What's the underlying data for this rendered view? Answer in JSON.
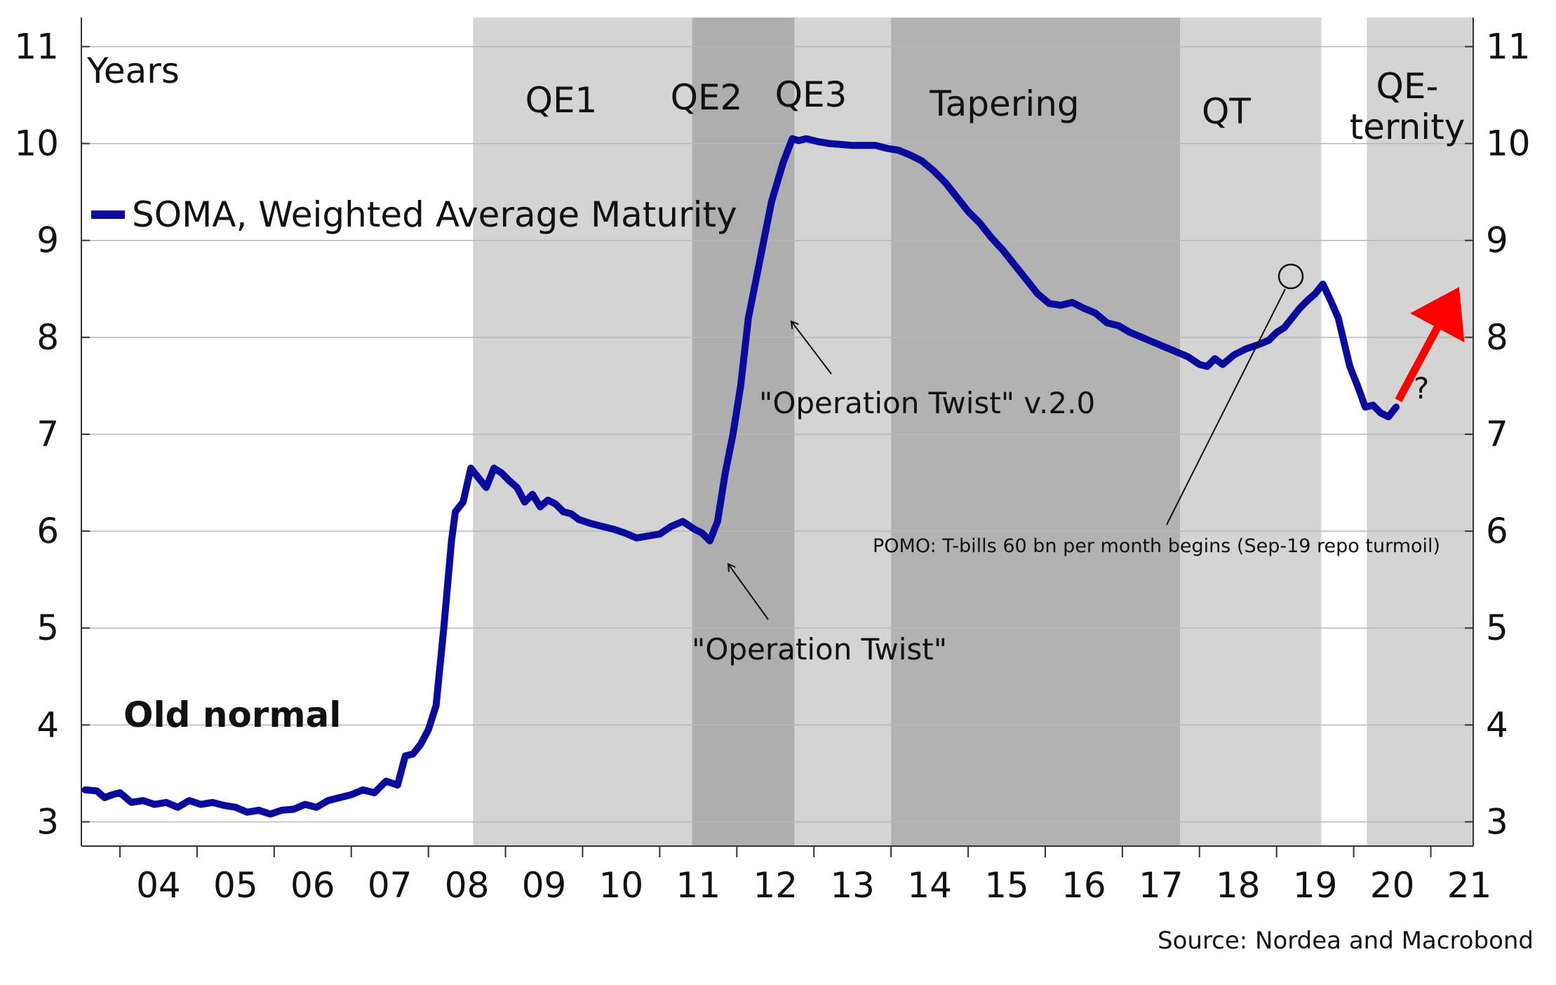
{
  "chart_data": {
    "type": "line",
    "ylabel": "Years",
    "ylim": [
      2.75,
      11.3
    ],
    "xlim": [
      2003.5,
      2021.55
    ],
    "yticks": [
      "3",
      "4",
      "5",
      "6",
      "7",
      "8",
      "9",
      "10",
      "11"
    ],
    "ytick_values": [
      3,
      4,
      5,
      6,
      7,
      8,
      9,
      10,
      11
    ],
    "xticks": [
      "04",
      "05",
      "06",
      "07",
      "08",
      "09",
      "10",
      "11",
      "12",
      "13",
      "14",
      "15",
      "16",
      "17",
      "18",
      "19",
      "20",
      "21"
    ],
    "xtick_values": [
      2004,
      2005,
      2006,
      2007,
      2008,
      2009,
      2010,
      2011,
      2012,
      2013,
      2014,
      2015,
      2016,
      2017,
      2018,
      2019,
      2020,
      2021
    ],
    "legend": {
      "label": "SOMA, Weighted Average Maturity",
      "color": "#0a0a9c",
      "position": "top-left"
    },
    "series": [
      {
        "name": "SOMA, Weighted Average Maturity",
        "color": "#0a0a9c",
        "x": [
          2003.55,
          2003.7,
          2003.8,
          2003.9,
          2004.0,
          2004.15,
          2004.3,
          2004.45,
          2004.6,
          2004.75,
          2004.9,
          2005.05,
          2005.2,
          2005.35,
          2005.5,
          2005.65,
          2005.8,
          2005.95,
          2006.1,
          2006.25,
          2006.4,
          2006.55,
          2006.7,
          2006.85,
          2007.0,
          2007.15,
          2007.3,
          2007.45,
          2007.6,
          2007.7,
          2007.8,
          2007.9,
          2008.0,
          2008.1,
          2008.2,
          2008.3,
          2008.35,
          2008.45,
          2008.55,
          2008.65,
          2008.75,
          2008.85,
          2008.95,
          2009.05,
          2009.15,
          2009.25,
          2009.35,
          2009.45,
          2009.55,
          2009.65,
          2009.75,
          2009.85,
          2009.95,
          2010.1,
          2010.25,
          2010.4,
          2010.55,
          2010.7,
          2010.85,
          2011.0,
          2011.15,
          2011.3,
          2011.45,
          2011.55,
          2011.65,
          2011.75,
          2011.85,
          2011.95,
          2012.05,
          2012.15,
          2012.3,
          2012.45,
          2012.6,
          2012.72,
          2012.8,
          2012.9,
          2013.05,
          2013.2,
          2013.35,
          2013.5,
          2013.65,
          2013.8,
          2013.95,
          2014.1,
          2014.25,
          2014.4,
          2014.55,
          2014.7,
          2014.85,
          2015.0,
          2015.15,
          2015.3,
          2015.45,
          2015.6,
          2015.75,
          2015.9,
          2016.05,
          2016.2,
          2016.35,
          2016.5,
          2016.65,
          2016.8,
          2016.95,
          2017.1,
          2017.25,
          2017.4,
          2017.55,
          2017.7,
          2017.85,
          2018.0,
          2018.1,
          2018.2,
          2018.3,
          2018.45,
          2018.6,
          2018.75,
          2018.9,
          2019.0,
          2019.1,
          2019.2,
          2019.3,
          2019.4,
          2019.5,
          2019.6,
          2019.7,
          2019.8,
          2019.95,
          2020.05,
          2020.15,
          2020.25,
          2020.35,
          2020.45,
          2020.55
        ],
        "values": [
          3.33,
          3.32,
          3.25,
          3.28,
          3.3,
          3.2,
          3.22,
          3.18,
          3.2,
          3.15,
          3.22,
          3.18,
          3.2,
          3.17,
          3.15,
          3.1,
          3.12,
          3.08,
          3.12,
          3.13,
          3.18,
          3.15,
          3.22,
          3.25,
          3.28,
          3.33,
          3.3,
          3.42,
          3.38,
          3.68,
          3.7,
          3.8,
          3.95,
          4.2,
          5.0,
          5.9,
          6.2,
          6.3,
          6.65,
          6.55,
          6.45,
          6.65,
          6.6,
          6.52,
          6.45,
          6.3,
          6.38,
          6.25,
          6.32,
          6.28,
          6.2,
          6.18,
          6.12,
          6.08,
          6.05,
          6.02,
          5.98,
          5.93,
          5.95,
          5.97,
          6.05,
          6.1,
          6.02,
          5.98,
          5.9,
          6.1,
          6.6,
          7.0,
          7.5,
          8.2,
          8.8,
          9.4,
          9.8,
          10.05,
          10.03,
          10.05,
          10.02,
          10.0,
          9.99,
          9.98,
          9.98,
          9.98,
          9.95,
          9.93,
          9.88,
          9.82,
          9.72,
          9.6,
          9.45,
          9.3,
          9.18,
          9.03,
          8.9,
          8.75,
          8.6,
          8.45,
          8.35,
          8.33,
          8.36,
          8.3,
          8.25,
          8.15,
          8.12,
          8.05,
          8.0,
          7.95,
          7.9,
          7.85,
          7.8,
          7.72,
          7.7,
          7.78,
          7.72,
          7.82,
          7.88,
          7.92,
          7.97,
          8.05,
          8.1,
          8.2,
          8.3,
          8.38,
          8.45,
          8.55,
          8.38,
          8.2,
          7.7,
          7.5,
          7.28,
          7.3,
          7.22,
          7.18,
          7.28
        ]
      }
    ],
    "regions": [
      {
        "label": "QE1",
        "x0": 2008.58,
        "x1": 2011.42,
        "color": "#d4d4d4"
      },
      {
        "label": "QE2",
        "x0": 2011.42,
        "x1": 2012.75,
        "color": "#aeaeae"
      },
      {
        "label": "QE3",
        "x0": 2012.75,
        "x1": 2014.0,
        "color": "#d4d4d4"
      },
      {
        "label": "Tapering",
        "x0": 2014.0,
        "x1": 2017.75,
        "color": "#b2b2b2"
      },
      {
        "label": "QT",
        "x0": 2017.75,
        "x1": 2019.58,
        "color": "#d4d4d4"
      },
      {
        "label": "QE-\nternity",
        "x0": 2020.17,
        "x1": 2021.55,
        "color": "#d4d4d4"
      }
    ],
    "annotations": [
      {
        "id": "operation-twist-v2",
        "text": "\"Operation Twist\" v.2.0"
      },
      {
        "id": "operation-twist",
        "text": "\"Operation Twist\""
      },
      {
        "id": "pomo",
        "text": "POMO: T-bills 60 bn per month begins (Sep-19 repo turmoil)"
      },
      {
        "id": "old-normal",
        "text": "Old normal"
      },
      {
        "id": "question",
        "text": "?"
      }
    ],
    "forecast_arrow": {
      "x": [
        2020.58,
        2021.4
      ],
      "values": [
        7.35,
        8.48
      ],
      "color": "#ff0000"
    },
    "source": "Source: Nordea and Macrobond"
  }
}
